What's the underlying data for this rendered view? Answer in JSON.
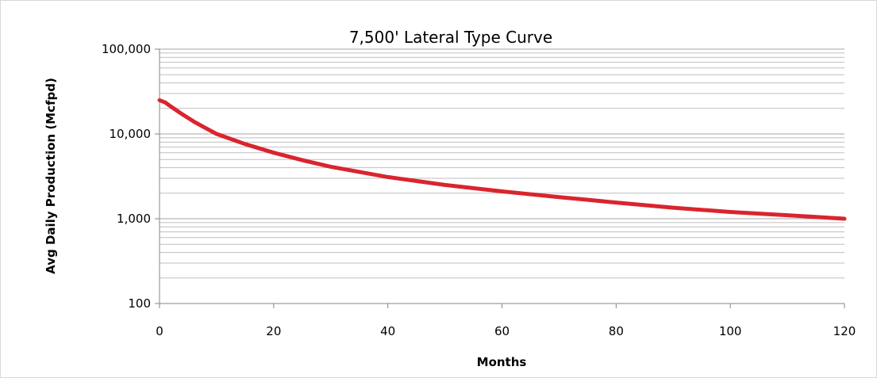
{
  "chart_data": {
    "type": "line",
    "title": "7,500' Lateral Type Curve",
    "xlabel": "Months",
    "ylabel": "Avg Daily Production (Mcfpd)",
    "xlim": [
      0,
      120
    ],
    "ylim": [
      100,
      100000
    ],
    "y_scale": "log",
    "grid": "horizontal major and minor",
    "legend": "none",
    "x_ticks": [
      0,
      20,
      40,
      60,
      80,
      100,
      120
    ],
    "x_tick_labels": [
      "0",
      "20",
      "40",
      "60",
      "80",
      "100",
      "120"
    ],
    "y_ticks": [
      100,
      1000,
      10000,
      100000
    ],
    "y_tick_labels": [
      "100",
      "1,000",
      "10,000",
      "100,000"
    ],
    "series": [
      {
        "color": "#d9252e",
        "x": [
          0,
          1,
          2,
          4,
          6,
          8,
          10,
          15,
          20,
          25,
          30,
          40,
          50,
          60,
          70,
          80,
          90,
          100,
          110,
          120
        ],
        "y": [
          25000,
          23500,
          21000,
          17000,
          14000,
          11800,
          10000,
          7600,
          6000,
          4900,
          4100,
          3100,
          2500,
          2100,
          1800,
          1550,
          1350,
          1200,
          1100,
          1000
        ]
      }
    ]
  }
}
